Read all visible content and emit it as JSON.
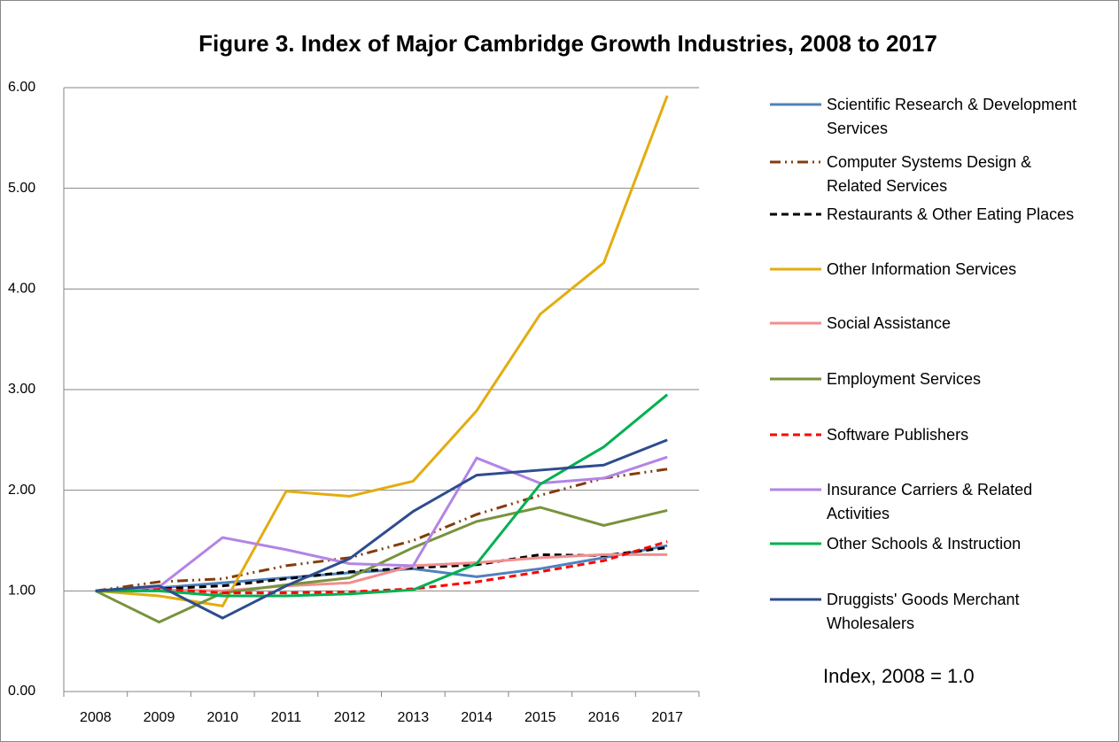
{
  "chart_data": {
    "type": "line",
    "title": "Figure 3.  Index of Major Cambridge Growth Industries, 2008 to 2017",
    "categories": [
      "2008",
      "2009",
      "2010",
      "2011",
      "2012",
      "2013",
      "2014",
      "2015",
      "2016",
      "2017"
    ],
    "ylim": [
      0,
      6
    ],
    "yticks": [
      {
        "value": 0,
        "label": "0.00"
      },
      {
        "value": 1,
        "label": "1.00"
      },
      {
        "value": 2,
        "label": "2.00"
      },
      {
        "value": 3,
        "label": "3.00"
      },
      {
        "value": 4,
        "label": "4.00"
      },
      {
        "value": 5,
        "label": "5.00"
      },
      {
        "value": 6,
        "label": "6.00"
      }
    ],
    "grid": true,
    "legend": "right",
    "annotation": "Index, 2008 = 1.0",
    "series": [
      {
        "name": "Scientific Research & Development Services",
        "color": "#4f81bd",
        "style": "solid",
        "values": [
          1.0,
          1.03,
          1.08,
          1.13,
          1.18,
          1.22,
          1.14,
          1.22,
          1.33,
          1.45
        ]
      },
      {
        "name": "Computer Systems Design & Related Services",
        "color": "#843c0c",
        "style": "dash-dot-dot",
        "values": [
          1.0,
          1.09,
          1.12,
          1.25,
          1.33,
          1.5,
          1.76,
          1.95,
          2.12,
          2.21
        ]
      },
      {
        "name": "Restaurants &  Other Eating Places",
        "color": "#000000",
        "style": "dash",
        "values": [
          1.0,
          1.02,
          1.05,
          1.12,
          1.19,
          1.23,
          1.26,
          1.36,
          1.35,
          1.43
        ]
      },
      {
        "name": "Other Information Services",
        "color": "#e3ac10",
        "style": "solid",
        "values": [
          1.0,
          0.95,
          0.85,
          1.99,
          1.94,
          2.09,
          2.79,
          3.75,
          4.26,
          5.92
        ]
      },
      {
        "name": "Social Assistance",
        "color": "#f28e8e",
        "style": "solid",
        "values": [
          1.0,
          1.01,
          1.0,
          1.05,
          1.08,
          1.25,
          1.28,
          1.33,
          1.36,
          1.36
        ]
      },
      {
        "name": "Employment Services",
        "color": "#77933c",
        "style": "solid",
        "values": [
          1.0,
          0.69,
          0.98,
          1.06,
          1.13,
          1.43,
          1.69,
          1.83,
          1.65,
          1.8
        ]
      },
      {
        "name": "Software Publishers",
        "color": "#ff0000",
        "style": "dash",
        "values": [
          1.0,
          1.02,
          0.98,
          0.98,
          0.99,
          1.02,
          1.09,
          1.19,
          1.3,
          1.49
        ]
      },
      {
        "name": "Insurance Carriers & Related Activities",
        "color": "#b384e6",
        "style": "solid",
        "values": [
          1.0,
          1.04,
          1.53,
          1.41,
          1.27,
          1.25,
          2.32,
          2.07,
          2.12,
          2.33
        ]
      },
      {
        "name": "Other Schools & Instruction",
        "color": "#00b050",
        "style": "solid",
        "values": [
          1.0,
          1.0,
          0.95,
          0.95,
          0.97,
          1.01,
          1.27,
          2.06,
          2.43,
          2.95
        ]
      },
      {
        "name": "Druggists' Goods Merchant Wholesalers",
        "color": "#2e4d8e",
        "style": "solid",
        "values": [
          1.0,
          1.05,
          0.73,
          1.05,
          1.32,
          1.79,
          2.15,
          2.2,
          2.25,
          2.5
        ]
      }
    ]
  }
}
